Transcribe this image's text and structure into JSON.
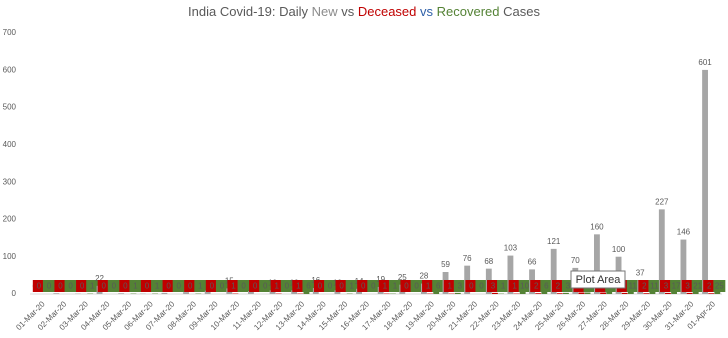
{
  "chart_data": {
    "type": "bar",
    "title": [
      {
        "text": "India Covid-19: Daily ",
        "color": "#595959"
      },
      {
        "text": "New",
        "color": "#8c8c8c"
      },
      {
        "text": " vs ",
        "color": "#595959"
      },
      {
        "text": "Deceased",
        "color": "#c00000"
      },
      {
        "text": " vs ",
        "color": "#2e5fa8"
      },
      {
        "text": "Recovered",
        "color": "#548235"
      },
      {
        "text": " Cases",
        "color": "#595959"
      }
    ],
    "categories": [
      "01-Mar-20",
      "02-Mar-20",
      "03-Mar-20",
      "04-Mar-20",
      "05-Mar-20",
      "06-Mar-20",
      "07-Mar-20",
      "08-Mar-20",
      "09-Mar-20",
      "10-Mar-20",
      "11-Mar-20",
      "12-Mar-20",
      "13-Mar-20",
      "14-Mar-20",
      "15-Mar-20",
      "16-Mar-20",
      "17-Mar-20",
      "18-Mar-20",
      "19-Mar-20",
      "20-Mar-20",
      "21-Mar-20",
      "22-Mar-20",
      "23-Mar-20",
      "24-Mar-20",
      "25-Mar-20",
      "26-Mar-20",
      "27-Mar-20",
      "28-Mar-20",
      "29-Mar-20",
      "30-Mar-20",
      "31-Mar-20",
      "01-Apr-20"
    ],
    "series": [
      {
        "color": "#a6a6a6",
        "values": [
          0,
          2,
          1,
          22,
          2,
          1,
          3,
          5,
          9,
          15,
          8,
          10,
          10,
          16,
          10,
          14,
          19,
          25,
          28,
          59,
          76,
          68,
          103,
          66,
          121,
          70,
          160,
          100,
          37,
          227,
          146,
          601
        ]
      },
      {
        "color": "#c00000",
        "values": [
          0,
          0,
          0,
          0,
          0,
          0,
          0,
          0,
          0,
          1,
          0,
          1,
          1,
          0,
          0,
          0,
          1,
          0,
          1,
          1,
          0,
          3,
          1,
          2,
          2,
          4,
          4,
          3,
          2,
          3,
          3,
          2
        ]
      },
      {
        "color": "#548235",
        "values": [
          0,
          0,
          1,
          0,
          1,
          1,
          0,
          1,
          0,
          0,
          0,
          0,
          6,
          0,
          1,
          0,
          1,
          0,
          6,
          3,
          0,
          1,
          10,
          6,
          3,
          4,
          6,
          11,
          11,
          17,
          21,
          25
        ]
      }
    ],
    "ylim": [
      0,
      700
    ],
    "yticks": [
      0,
      100,
      200,
      300,
      400,
      500,
      600,
      700
    ],
    "tooltip": "Plot Area"
  }
}
